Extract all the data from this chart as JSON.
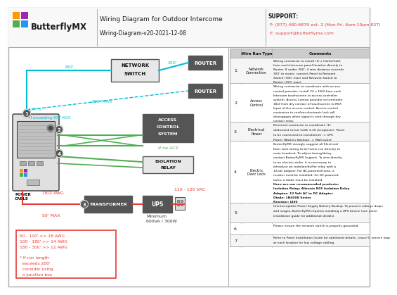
{
  "title": "Wiring Diagram for Outdoor Intercome",
  "subtitle": "Wiring-Diagram-v20-2021-12-08",
  "logo_text": "ButterflyMX",
  "support_line1": "SUPPORT:",
  "support_line2": "P: (877) 480-6879 ext. 2 (Mon-Fri, 6am-10pm EST)",
  "support_line3": "E: support@butterflymx.com",
  "bg_color": "#ffffff",
  "cyan": "#00bcd4",
  "green": "#4caf50",
  "red": "#e53935",
  "table_rows": [
    {
      "num": "1",
      "type": "Network\nConnection",
      "comment": "Wiring contractor to install (1) x Cat5e/Cat6\nfrom each Intercom panel location directly to\nRouter. If under 300', if wire distance exceeds\n300' to router, connect Panel to Network\nSwitch (300' max) and Network Switch to\nRouter (250' max)."
    },
    {
      "num": "2",
      "type": "Access\nControl",
      "comment": "Wiring contractor to coordinate with access\ncontrol provider, install (1) x 18/2 from each\nIntercom touchscreen to access controller\nsystem. Access Control provider to terminate\n18/2 from dry contact of touchscreen to REX\nInput of the access control. Access control\ncontractor to confirm electronic lock will\ndisengages when signal is sent through dry\ncontact relay."
    },
    {
      "num": "3",
      "type": "Electrical\nPower",
      "comment": "Electrical contractor to coordinate (1)\ndedicated circuit (with 3-20 receptacle). Panel\nto be connected to transformer -> UPS\nPower (Battery Backup) -> Wall outlet"
    },
    {
      "num": "4",
      "type": "Electric\nDoor Lock",
      "comment": "ButterflyMX strongly suggest all Electrical\nDoor Lock wiring to be home-run directly to\nmain headend. To adjust timing/delay,\ncontact ButterflyMX Support. To wire directly\nto an electric strike, it is necessary to\nintroduce an isolation/buffer relay with a\n12vdc adapter. For AC-powered locks, a\nresistor must be installed; for DC-powered\nlocks, a diode must be installed.\nHere are our recommended products:\nIsolation Relay: Altronix R05 Isolation Relay\nAdapter: 12 Volt AC to DC Adapter\nDiode: 1N4008 Series\nResistor: J450"
    },
    {
      "num": "5",
      "type": "",
      "comment": "Uninterruptible Power Supply Battery Backup. To prevent voltage drops\nand surges, ButterflyMX requires installing a UPS device (see panel\ninstallation guide for additional details)."
    },
    {
      "num": "6",
      "type": "",
      "comment": "Please ensure the network switch is properly grounded."
    },
    {
      "num": "7",
      "type": "",
      "comment": "Refer to Panel Installation Guide for additional details. Leave 6' service loop\nat each location for low voltage cabling."
    }
  ]
}
